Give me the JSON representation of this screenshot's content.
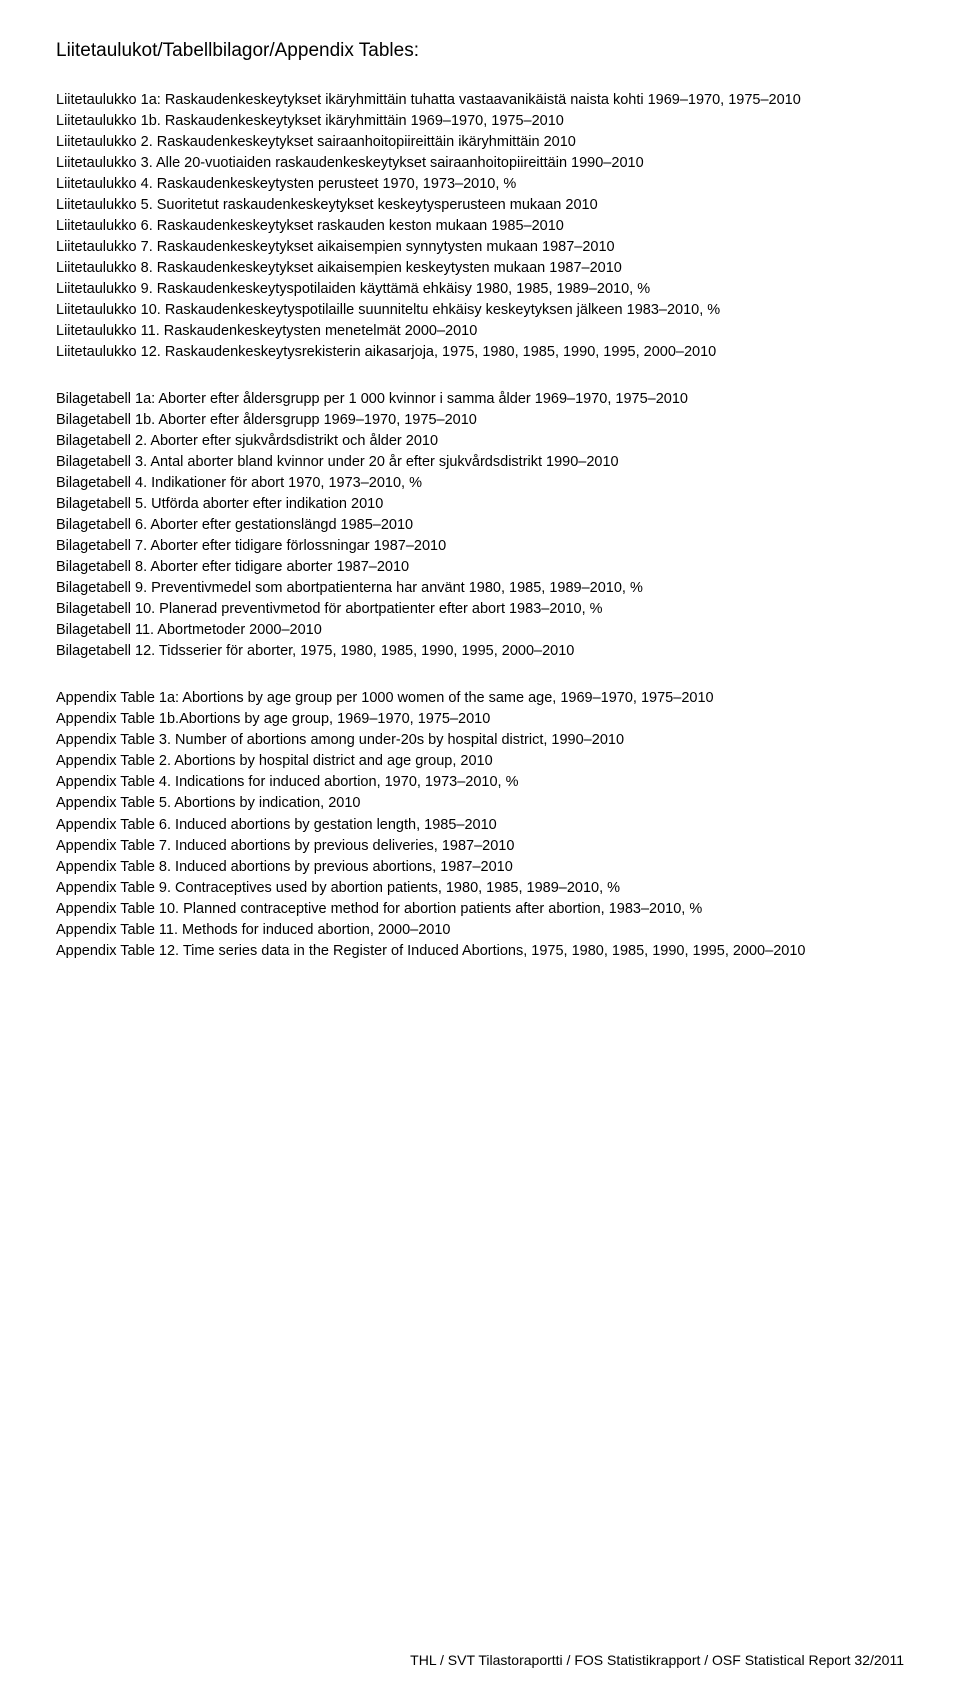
{
  "title": "Liitetaulukot/Tabellbilagor/Appendix Tables:",
  "blocks": {
    "finnish": [
      "Liitetaulukko 1a: Raskaudenkeskeytykset ikäryhmittäin tuhatta vastaavanikäistä naista kohti 1969–1970, 1975–2010",
      "Liitetaulukko 1b. Raskaudenkeskeytykset ikäryhmittäin 1969–1970, 1975–2010",
      "Liitetaulukko 2. Raskaudenkeskeytykset sairaanhoitopiireittäin ikäryhmittäin 2010",
      "Liitetaulukko 3. Alle 20-vuotiaiden raskaudenkeskeytykset sairaanhoitopiireittäin 1990–2010",
      "Liitetaulukko 4. Raskaudenkeskeytysten perusteet 1970, 1973–2010, %",
      "Liitetaulukko 5. Suoritetut raskaudenkeskeytykset keskeytysperusteen mukaan 2010",
      "Liitetaulukko 6. Raskaudenkeskeytykset raskauden keston mukaan 1985–2010",
      "Liitetaulukko 7. Raskaudenkeskeytykset aikaisempien synnytysten mukaan 1987–2010",
      "Liitetaulukko 8. Raskaudenkeskeytykset aikaisempien keskeytysten mukaan 1987–2010",
      "Liitetaulukko 9. Raskaudenkeskeytyspotilaiden käyttämä ehkäisy 1980, 1985, 1989–2010, %",
      "Liitetaulukko 10. Raskaudenkeskeytyspotilaille suunniteltu ehkäisy keskeytyksen jälkeen 1983–2010, %",
      "Liitetaulukko 11. Raskaudenkeskeytysten menetelmät 2000–2010",
      "Liitetaulukko 12. Raskaudenkeskeytysrekisterin aikasarjoja, 1975, 1980, 1985, 1990, 1995, 2000–2010"
    ],
    "swedish": [
      "Bilagetabell 1a: Aborter efter åldersgrupp per 1 000 kvinnor i samma ålder 1969–1970, 1975–2010",
      "Bilagetabell 1b. Aborter efter åldersgrupp 1969–1970, 1975–2010",
      "Bilagetabell 2. Aborter efter sjukvårdsdistrikt och ålder 2010",
      "Bilagetabell 3. Antal aborter bland kvinnor under 20 år efter sjukvårdsdistrikt 1990–2010",
      "Bilagetabell 4. Indikationer för abort 1970, 1973–2010, %",
      "Bilagetabell 5. Utförda aborter efter indikation 2010",
      "Bilagetabell 6. Aborter efter gestationslängd 1985–2010",
      "Bilagetabell 7. Aborter efter tidigare förlossningar 1987–2010",
      "Bilagetabell 8. Aborter efter tidigare aborter 1987–2010",
      "Bilagetabell 9. Preventivmedel som abortpatienterna har använt 1980, 1985, 1989–2010, %",
      "Bilagetabell 10. Planerad preventivmetod för abortpatienter efter abort 1983–2010, %",
      "Bilagetabell 11. Abortmetoder 2000–2010",
      "Bilagetabell 12. Tidsserier för aborter, 1975, 1980, 1985, 1990, 1995, 2000–2010"
    ],
    "english": [
      "Appendix Table 1a: Abortions by age group per 1000 women of the same age, 1969–1970, 1975–2010",
      "Appendix Table 1b.Abortions by age group, 1969–1970, 1975–2010",
      "Appendix Table 3. Number of abortions among under-20s by hospital district, 1990–2010",
      "Appendix Table 2. Abortions by hospital district and age group, 2010",
      "Appendix Table 4. Indications for induced abortion, 1970, 1973–2010, %",
      "Appendix Table 5. Abortions by indication, 2010",
      "Appendix Table 6. Induced abortions by gestation length, 1985–2010",
      "Appendix Table 7. Induced abortions by previous deliveries, 1987–2010",
      "Appendix Table 8. Induced abortions by previous abortions, 1987–2010",
      "Appendix Table 9. Contraceptives used by abortion patients, 1980, 1985, 1989–2010, %",
      "Appendix Table 10. Planned contraceptive method for abortion patients after abortion, 1983–2010, %",
      "Appendix Table 11. Methods for induced abortion, 2000–2010",
      "Appendix Table 12. Time series data in the Register of Induced Abortions, 1975, 1980, 1985, 1990, 1995, 2000–2010"
    ]
  },
  "footer": "THL / SVT Tilastoraportti / FOS Statistikrapport / OSF Statistical Report  32/2011"
}
